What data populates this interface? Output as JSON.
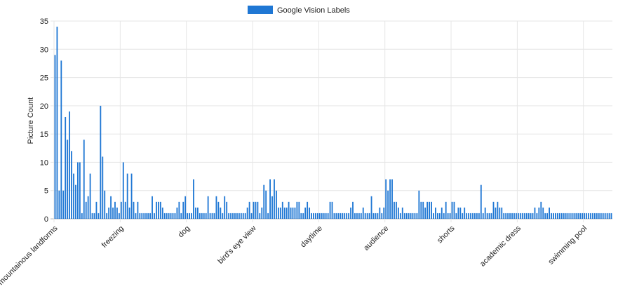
{
  "chart_data": {
    "type": "bar",
    "title": "",
    "xlabel": "",
    "ylabel": "Picture Count",
    "ylim": [
      0,
      35
    ],
    "yticks": [
      0,
      5,
      10,
      15,
      20,
      25,
      30,
      35
    ],
    "grid": true,
    "legend_position": "top-center",
    "bar_color": "#1f77d4",
    "grid_color": "#e6e6e6",
    "x_tick_labels": [
      "mountainous landforms",
      "freezing",
      "dog",
      "bird's eye view",
      "daytime",
      "audience",
      "shorts",
      "academic dress",
      "swimming pool"
    ],
    "x_tick_label_indices": [
      0,
      32,
      64,
      96,
      128,
      160,
      192,
      224,
      256
    ],
    "series": [
      {
        "name": "Google Vision Labels",
        "values": [
          29,
          34,
          5,
          28,
          5,
          18,
          14,
          19,
          12,
          8,
          6,
          10,
          10,
          1,
          14,
          3,
          4,
          8,
          1,
          1,
          3,
          1,
          20,
          11,
          5,
          1,
          2,
          4,
          2,
          3,
          2,
          1,
          3,
          10,
          3,
          8,
          2,
          8,
          3,
          1,
          3,
          1,
          1,
          1,
          1,
          1,
          1,
          4,
          1,
          3,
          3,
          3,
          2,
          1,
          1,
          1,
          1,
          1,
          1,
          2,
          3,
          1,
          3,
          4,
          1,
          1,
          1,
          7,
          2,
          2,
          1,
          1,
          1,
          1,
          4,
          1,
          1,
          1,
          4,
          3,
          2,
          1,
          4,
          3,
          1,
          1,
          1,
          1,
          1,
          1,
          1,
          1,
          1,
          2,
          3,
          1,
          3,
          3,
          3,
          1,
          2,
          6,
          5,
          1,
          7,
          4,
          7,
          5,
          2,
          2,
          3,
          2,
          2,
          3,
          2,
          2,
          2,
          3,
          3,
          1,
          1,
          2,
          3,
          2,
          1,
          1,
          1,
          1,
          1,
          1,
          1,
          1,
          1,
          3,
          3,
          1,
          1,
          1,
          1,
          1,
          1,
          1,
          1,
          2,
          3,
          1,
          1,
          1,
          1,
          2,
          1,
          1,
          1,
          4,
          1,
          1,
          1,
          2,
          1,
          2,
          7,
          5,
          7,
          7,
          3,
          3,
          2,
          1,
          2,
          1,
          1,
          1,
          1,
          1,
          1,
          1,
          5,
          3,
          3,
          2,
          3,
          3,
          3,
          1,
          2,
          1,
          1,
          2,
          1,
          3,
          1,
          1,
          3,
          3,
          1,
          2,
          2,
          1,
          2,
          1,
          1,
          1,
          1,
          1,
          1,
          1,
          6,
          1,
          2,
          1,
          1,
          1,
          3,
          2,
          3,
          2,
          2,
          1,
          1,
          1,
          1,
          1,
          1,
          1,
          1,
          1,
          1,
          1,
          1,
          1,
          1,
          1,
          2,
          1,
          2,
          3,
          2,
          1,
          1,
          2,
          1,
          1,
          1,
          1,
          1,
          1,
          1,
          1,
          1,
          1,
          1,
          1,
          1,
          1,
          1,
          1,
          1,
          1,
          1,
          1,
          1,
          1,
          1,
          1,
          1,
          1,
          1,
          1,
          1,
          1
        ]
      }
    ]
  }
}
